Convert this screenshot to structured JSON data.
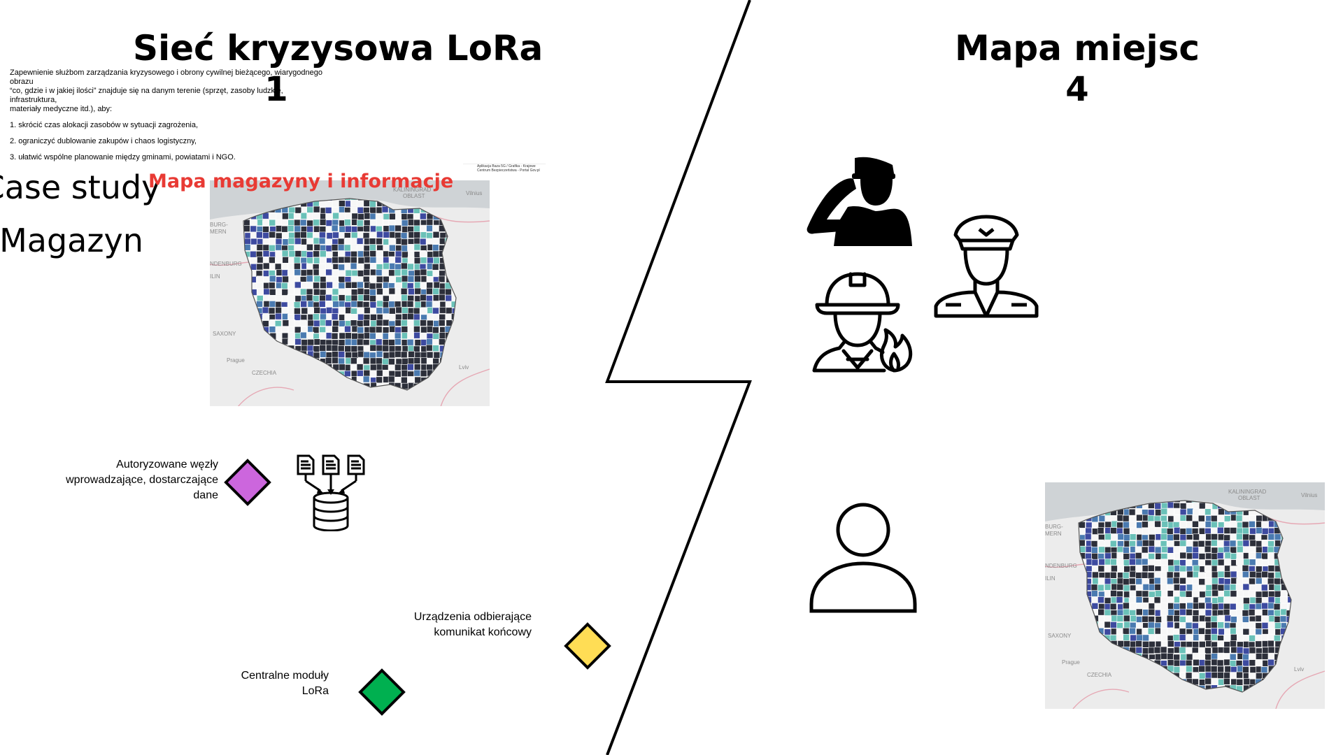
{
  "left": {
    "title": "Sieć kryzysowa LoRa",
    "number": "1",
    "intro": [
      "Zapewnienie służbom zarządzania kryzysowego i obrony cywilnej bieżącego, wiarygodnego obrazu",
      "“co, gdzie i w jakiej ilości” znajduje się na danym terenie (sprzęt, zasoby ludzkie, infrastruktura,",
      "materiały medyczne itd.), aby:",
      "1. skrócić czas alokacji zasobów w sytuacji zagrożenia,",
      "2. ograniczyć dublowanie zakupów i chaos logistyczny,",
      "3. ułatwić wspólne planowanie między gminami, powiatami i NGO."
    ],
    "case_line1": "Case study",
    "case_line2": "Magazyn",
    "map_title": "Mapa magazyny i informacje",
    "map_labels": {
      "oblast_line1": "KALININGRAD",
      "oblast_line2": "OBLAST",
      "vilnius": "Vilnius",
      "burg": "BURG-",
      "mern": "MERN",
      "ndenburg": "NDENBURG",
      "lin": "ILIN",
      "saxony": "SAXONY",
      "prague": "Prague",
      "czechia": "CZECHIA",
      "lviv": "Lviv"
    },
    "map_note": {
      "line1": "Aplikacja Baza 5G / Grafika - Krajowe",
      "line2": "Centrum Bezpieczeństwa - Portal Gov.pl"
    },
    "legend": {
      "authorized": [
        "Autoryzowane węzły",
        "wprowadzające, dostarczające",
        "dane"
      ],
      "receivers": [
        "Urządzenia odbierające",
        "komunikat końcowy"
      ],
      "central": [
        "Centralne moduły",
        "LoRa"
      ]
    },
    "icons": [
      "documents-to-database-icon"
    ]
  },
  "right": {
    "title": "Mapa miejsc",
    "number": "4",
    "map_labels": {
      "oblast_line1": "KALININGRAD",
      "oblast_line2": "OBLAST",
      "vilnius": "Vilnius",
      "burg": "BURG-",
      "mern": "MERN",
      "ndenburg": "NDENBURG",
      "lin": "ILIN",
      "saxony": "SAXONY",
      "prague": "Prague",
      "czechia": "CZECHIA",
      "lviv": "Lviv"
    },
    "icons": [
      "saluting-soldier-icon",
      "police-officer-icon",
      "firefighter-icon",
      "user-icon"
    ]
  },
  "colors": {
    "authorized_node": "#cc66dd",
    "receiver_node": "#ffdd55",
    "central_node": "#00b050",
    "map_title_red": "#e83a34",
    "map_dark": "#2c2f3a",
    "map_blue": "#3d4aa0",
    "map_mid": "#4a7ab0",
    "map_teal": "#6ac1b8",
    "map_white": "#f7f7f7"
  }
}
